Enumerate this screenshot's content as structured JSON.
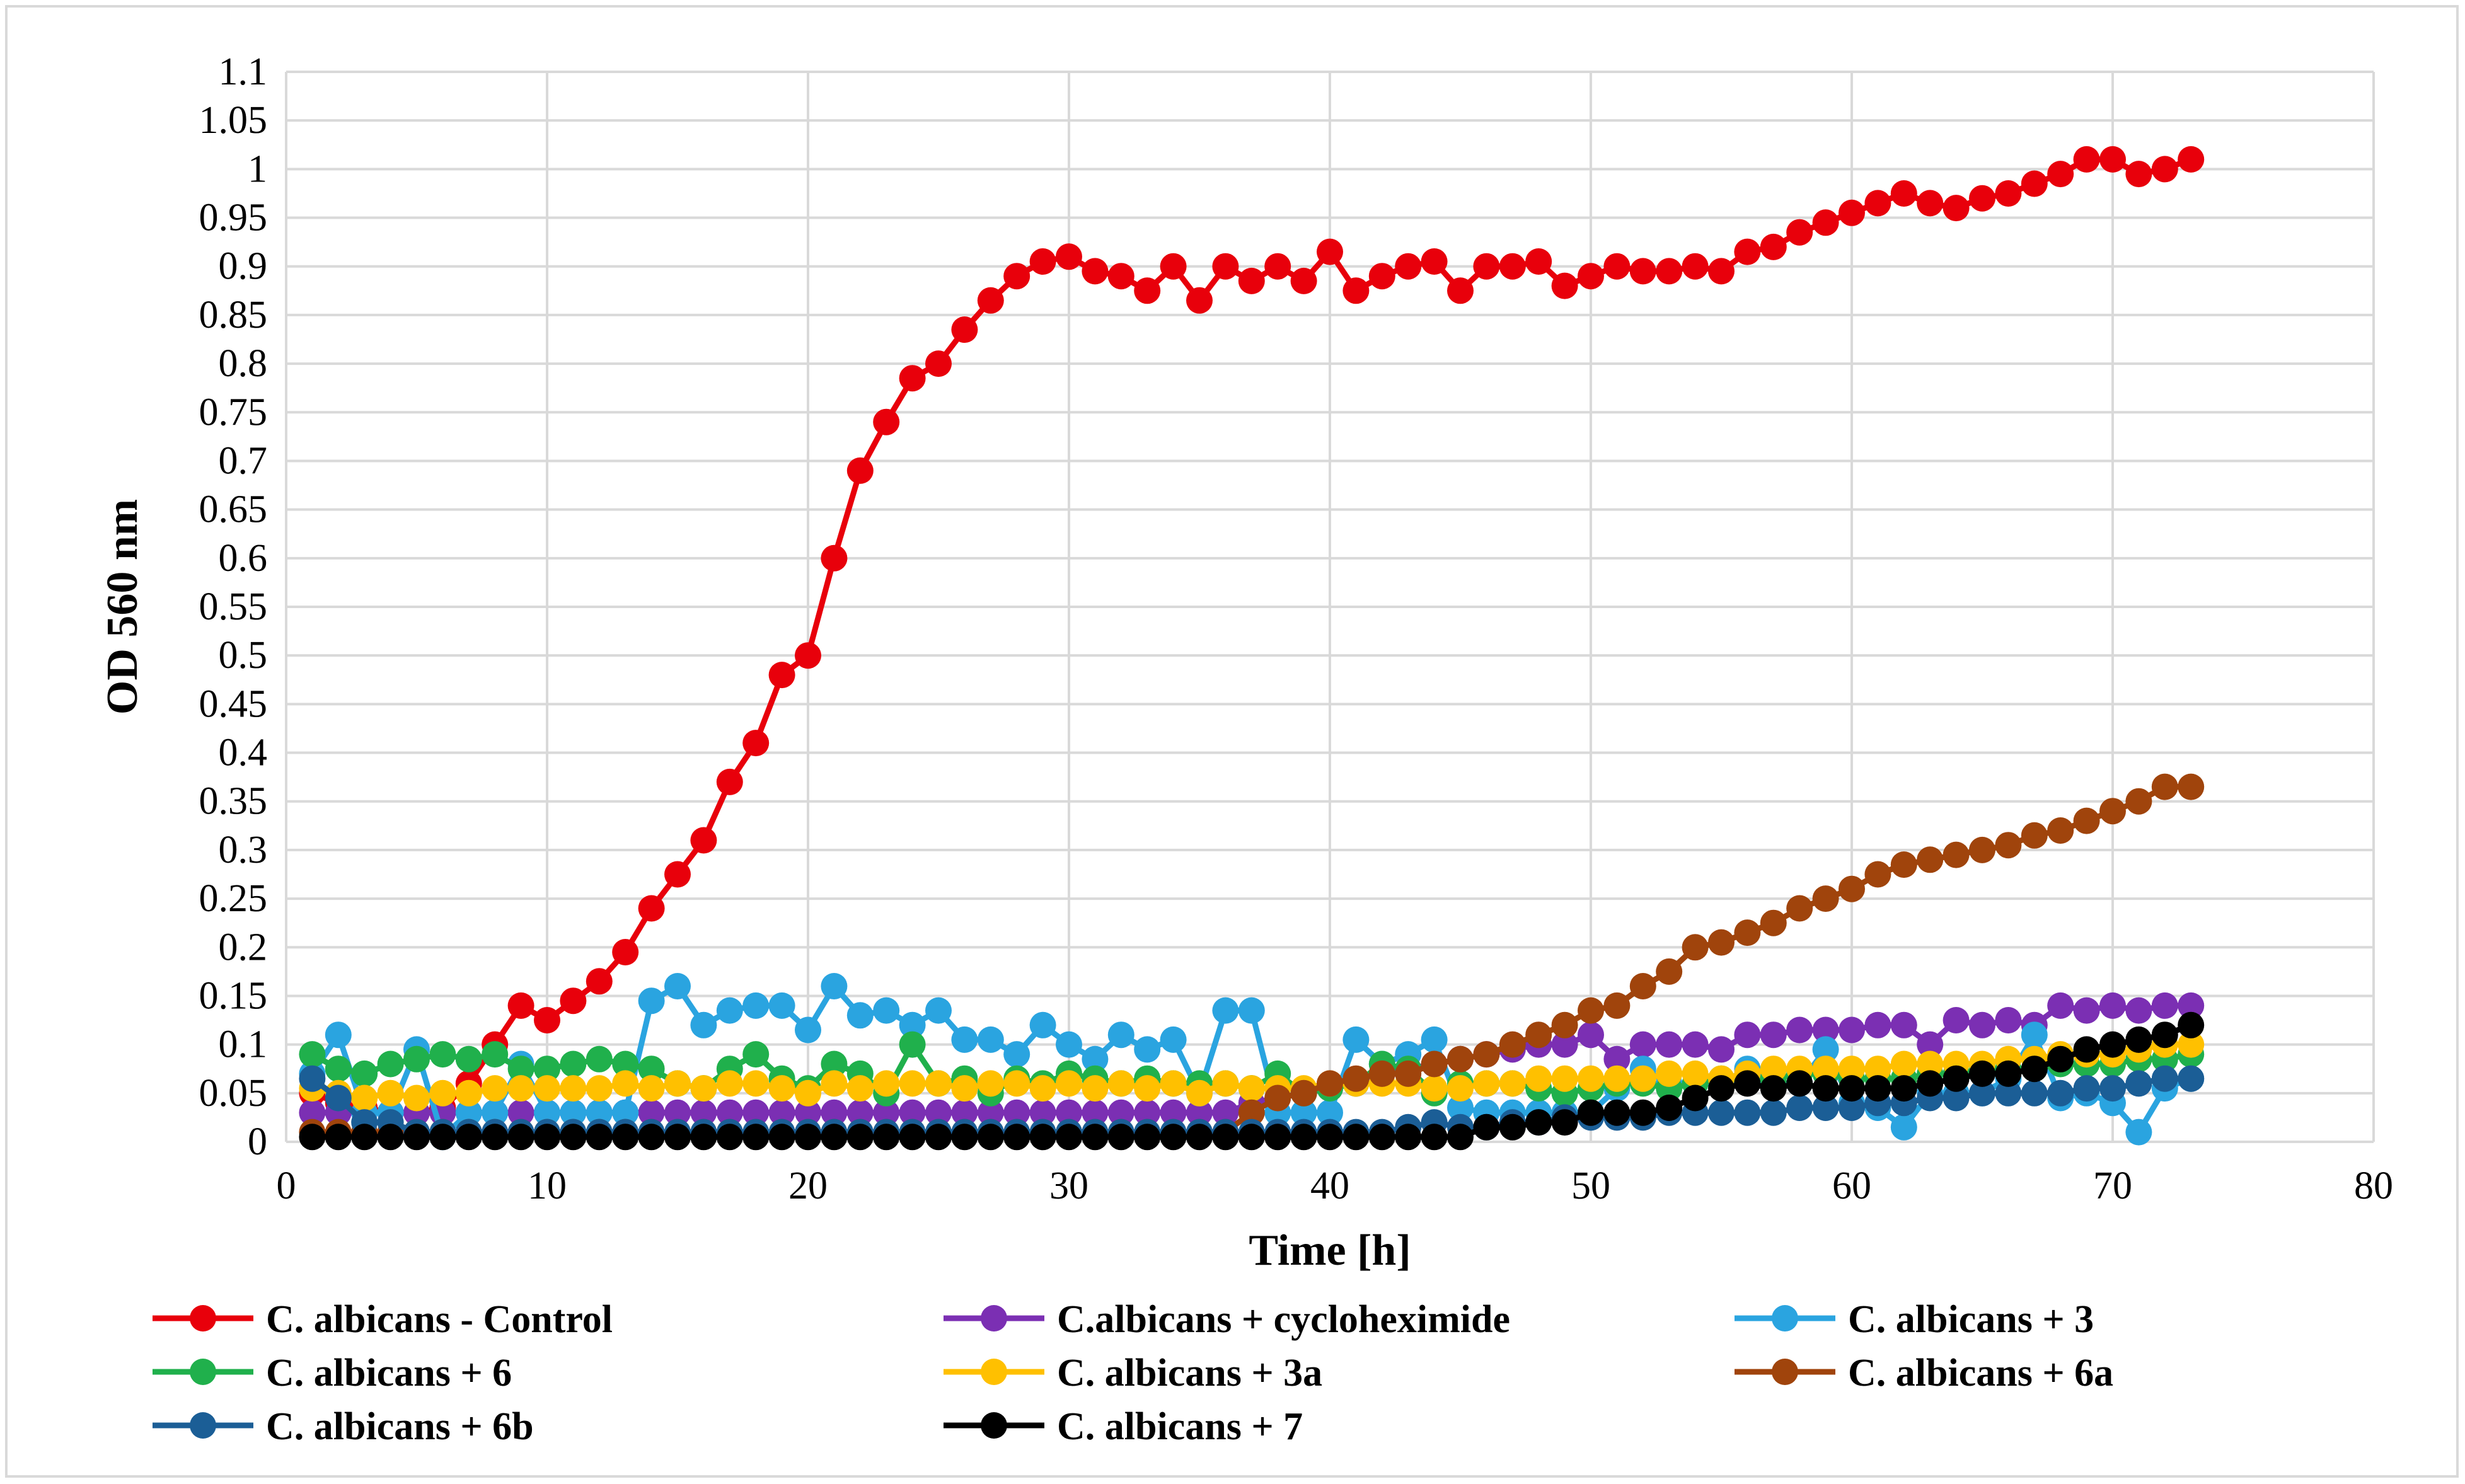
{
  "chart_data": {
    "type": "line",
    "title": "",
    "xlabel": "Time [h]",
    "ylabel": "OD 560 nm",
    "xlim": [
      0,
      80
    ],
    "ylim": [
      0,
      1.1
    ],
    "xticks": [
      "0",
      "10",
      "20",
      "30",
      "40",
      "50",
      "60",
      "70",
      "80"
    ],
    "yticks": [
      "0",
      "0.05",
      "0.1",
      "0.15",
      "0.2",
      "0.25",
      "0.3",
      "0.35",
      "0.4",
      "0.45",
      "0.5",
      "0.55",
      "0.6",
      "0.65",
      "0.7",
      "0.75",
      "0.8",
      "0.85",
      "0.9",
      "0.95",
      "1",
      "1.05",
      "1.1"
    ],
    "grid": true,
    "legend_position": "bottom",
    "series": [
      {
        "name": "C. albicans - Control",
        "color": "#e8000b",
        "values": [
          0.05,
          0.04,
          0.035,
          0.03,
          0.03,
          0.035,
          0.06,
          0.1,
          0.14,
          0.125,
          0.145,
          0.165,
          0.195,
          0.24,
          0.275,
          0.31,
          0.37,
          0.41,
          0.48,
          0.5,
          0.6,
          0.69,
          0.74,
          0.785,
          0.8,
          0.835,
          0.865,
          0.89,
          0.905,
          0.91,
          0.895,
          0.89,
          0.875,
          0.9,
          0.865,
          0.9,
          0.885,
          0.9,
          0.885,
          0.915,
          0.875,
          0.89,
          0.9,
          0.905,
          0.875,
          0.9,
          0.9,
          0.905,
          0.88,
          0.89,
          0.9,
          0.895,
          0.895,
          0.9,
          0.895,
          0.915,
          0.92,
          0.935,
          0.945,
          0.955,
          0.965,
          0.975,
          0.965,
          0.96,
          0.97,
          0.975,
          0.985,
          0.995,
          1.01,
          1.01,
          0.995,
          1.0,
          1.01
        ]
      },
      {
        "name": "C.albicans + cycloheximide",
        "color": "#7b2fb3",
        "values": [
          0.03,
          0.03,
          0.03,
          0.03,
          0.03,
          0.03,
          0.03,
          0.03,
          0.03,
          0.03,
          0.03,
          0.03,
          0.03,
          0.03,
          0.03,
          0.03,
          0.03,
          0.03,
          0.03,
          0.03,
          0.03,
          0.03,
          0.03,
          0.03,
          0.03,
          0.03,
          0.03,
          0.03,
          0.03,
          0.03,
          0.03,
          0.03,
          0.03,
          0.03,
          0.03,
          0.03,
          0.04,
          0.045,
          0.05,
          0.055,
          0.06,
          0.07,
          0.075,
          0.08,
          0.085,
          0.09,
          0.095,
          0.1,
          0.1,
          0.11,
          0.085,
          0.1,
          0.1,
          0.1,
          0.095,
          0.11,
          0.11,
          0.115,
          0.115,
          0.115,
          0.12,
          0.12,
          0.1,
          0.125,
          0.12,
          0.125,
          0.12,
          0.14,
          0.135,
          0.14,
          0.135,
          0.14,
          0.14
        ]
      },
      {
        "name": "C. albicans + 3",
        "color": "#2aa4e0",
        "values": [
          0.07,
          0.11,
          0.03,
          0.03,
          0.095,
          0.005,
          0.03,
          0.03,
          0.08,
          0.03,
          0.03,
          0.03,
          0.03,
          0.145,
          0.16,
          0.12,
          0.135,
          0.14,
          0.14,
          0.115,
          0.16,
          0.13,
          0.135,
          0.12,
          0.135,
          0.105,
          0.105,
          0.09,
          0.12,
          0.1,
          0.085,
          0.11,
          0.095,
          0.105,
          0.05,
          0.135,
          0.135,
          0.03,
          0.03,
          0.03,
          0.105,
          0.08,
          0.09,
          0.105,
          0.035,
          0.03,
          0.03,
          0.03,
          0.03,
          0.03,
          0.055,
          0.075,
          0.06,
          0.06,
          0.06,
          0.075,
          0.06,
          0.06,
          0.095,
          0.04,
          0.035,
          0.015,
          0.05,
          0.05,
          0.05,
          0.065,
          0.11,
          0.045,
          0.05,
          0.04,
          0.01,
          0.055,
          0.065
        ]
      },
      {
        "name": "C. albicans + 6",
        "color": "#20b04c",
        "values": [
          0.09,
          0.075,
          0.07,
          0.08,
          0.085,
          0.09,
          0.085,
          0.09,
          0.075,
          0.075,
          0.08,
          0.085,
          0.08,
          0.075,
          0.06,
          0.055,
          0.075,
          0.09,
          0.065,
          0.055,
          0.08,
          0.07,
          0.05,
          0.1,
          0.06,
          0.065,
          0.05,
          0.065,
          0.06,
          0.07,
          0.065,
          0.06,
          0.065,
          0.06,
          0.06,
          0.06,
          0.055,
          0.07,
          0.05,
          0.055,
          0.06,
          0.08,
          0.075,
          0.05,
          0.06,
          0.06,
          0.06,
          0.055,
          0.05,
          0.055,
          0.06,
          0.06,
          0.055,
          0.06,
          0.065,
          0.065,
          0.065,
          0.07,
          0.07,
          0.065,
          0.065,
          0.065,
          0.07,
          0.07,
          0.075,
          0.075,
          0.075,
          0.08,
          0.08,
          0.08,
          0.085,
          0.085,
          0.09
        ]
      },
      {
        "name": "C. albicans + 3a",
        "color": "#ffc000",
        "values": [
          0.055,
          0.05,
          0.045,
          0.05,
          0.045,
          0.05,
          0.05,
          0.055,
          0.055,
          0.055,
          0.055,
          0.055,
          0.06,
          0.055,
          0.06,
          0.055,
          0.06,
          0.06,
          0.055,
          0.05,
          0.06,
          0.055,
          0.06,
          0.06,
          0.06,
          0.055,
          0.06,
          0.06,
          0.055,
          0.06,
          0.055,
          0.06,
          0.055,
          0.06,
          0.05,
          0.06,
          0.055,
          0.055,
          0.055,
          0.06,
          0.06,
          0.06,
          0.06,
          0.055,
          0.055,
          0.06,
          0.06,
          0.065,
          0.065,
          0.065,
          0.065,
          0.065,
          0.07,
          0.07,
          0.065,
          0.07,
          0.075,
          0.075,
          0.075,
          0.075,
          0.075,
          0.08,
          0.08,
          0.08,
          0.08,
          0.085,
          0.085,
          0.09,
          0.09,
          0.09,
          0.095,
          0.1,
          0.1
        ]
      },
      {
        "name": "C. albicans + 6a",
        "color": "#a0440c",
        "values": [
          0.01,
          0.01,
          0.01,
          0.01,
          0.01,
          0.01,
          0.01,
          0.01,
          0.01,
          0.01,
          0.01,
          0.01,
          0.01,
          0.01,
          0.01,
          0.01,
          0.01,
          0.01,
          0.01,
          0.01,
          0.01,
          0.01,
          0.01,
          0.01,
          0.01,
          0.01,
          0.01,
          0.01,
          0.01,
          0.01,
          0.01,
          0.01,
          0.01,
          0.01,
          0.01,
          0.01,
          0.03,
          0.045,
          0.05,
          0.06,
          0.065,
          0.07,
          0.07,
          0.08,
          0.085,
          0.09,
          0.1,
          0.11,
          0.12,
          0.135,
          0.14,
          0.16,
          0.175,
          0.2,
          0.205,
          0.215,
          0.225,
          0.24,
          0.25,
          0.26,
          0.275,
          0.285,
          0.29,
          0.295,
          0.3,
          0.305,
          0.315,
          0.32,
          0.33,
          0.34,
          0.35,
          0.365,
          0.365
        ]
      },
      {
        "name": "C. albicans + 6b",
        "color": "#1b5e96",
        "values": [
          0.065,
          0.045,
          0.02,
          0.02,
          0.01,
          0.01,
          0.01,
          0.01,
          0.01,
          0.01,
          0.01,
          0.01,
          0.01,
          0.01,
          0.01,
          0.01,
          0.01,
          0.01,
          0.01,
          0.01,
          0.01,
          0.01,
          0.01,
          0.01,
          0.01,
          0.01,
          0.01,
          0.01,
          0.01,
          0.01,
          0.01,
          0.01,
          0.01,
          0.01,
          0.01,
          0.01,
          0.01,
          0.01,
          0.01,
          0.01,
          0.01,
          0.01,
          0.015,
          0.02,
          0.015,
          0.015,
          0.02,
          0.02,
          0.025,
          0.025,
          0.025,
          0.025,
          0.03,
          0.03,
          0.03,
          0.03,
          0.03,
          0.035,
          0.035,
          0.035,
          0.04,
          0.04,
          0.045,
          0.045,
          0.05,
          0.05,
          0.05,
          0.05,
          0.055,
          0.055,
          0.06,
          0.065,
          0.065
        ]
      },
      {
        "name": "C. albicans + 7",
        "color": "#000000",
        "values": [
          0.005,
          0.005,
          0.005,
          0.005,
          0.005,
          0.005,
          0.005,
          0.005,
          0.005,
          0.005,
          0.005,
          0.005,
          0.005,
          0.005,
          0.005,
          0.005,
          0.005,
          0.005,
          0.005,
          0.005,
          0.005,
          0.005,
          0.005,
          0.005,
          0.005,
          0.005,
          0.005,
          0.005,
          0.005,
          0.005,
          0.005,
          0.005,
          0.005,
          0.005,
          0.005,
          0.005,
          0.005,
          0.005,
          0.005,
          0.005,
          0.005,
          0.005,
          0.005,
          0.005,
          0.005,
          0.015,
          0.015,
          0.02,
          0.02,
          0.03,
          0.03,
          0.03,
          0.035,
          0.045,
          0.055,
          0.06,
          0.055,
          0.06,
          0.055,
          0.055,
          0.055,
          0.055,
          0.06,
          0.065,
          0.07,
          0.07,
          0.075,
          0.085,
          0.095,
          0.1,
          0.105,
          0.11,
          0.12
        ]
      }
    ]
  }
}
